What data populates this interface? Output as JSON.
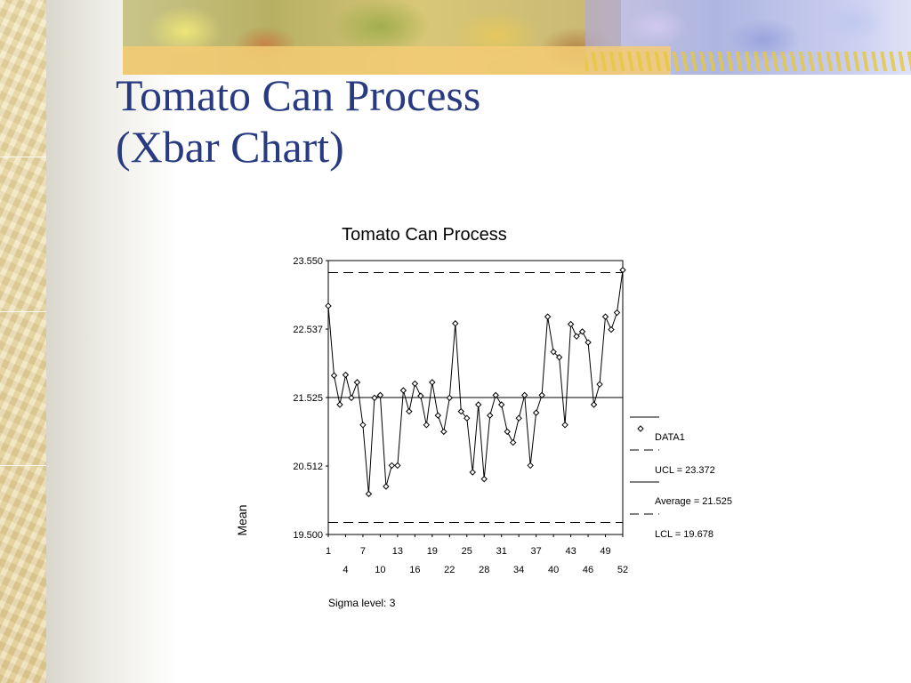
{
  "slide": {
    "title_line1": "Tomato Can Process",
    "title_line2": "(Xbar Chart)"
  },
  "chart_data": {
    "type": "line",
    "title": "Tomato Can Process",
    "xlabel": "",
    "ylabel": "Mean",
    "xlim": [
      1,
      52
    ],
    "ylim": [
      19.5,
      23.55
    ],
    "y_ticks": [
      "23.550",
      "22.537",
      "21.525",
      "20.512",
      "19.500"
    ],
    "x_ticks_row1": [
      1,
      7,
      13,
      19,
      25,
      31,
      37,
      43,
      49
    ],
    "x_ticks_row2": [
      4,
      10,
      16,
      22,
      28,
      34,
      40,
      46,
      52
    ],
    "series": [
      {
        "name": "DATA1",
        "x": [
          1,
          2,
          3,
          4,
          5,
          6,
          7,
          8,
          9,
          10,
          11,
          12,
          13,
          14,
          15,
          16,
          17,
          18,
          19,
          20,
          21,
          22,
          23,
          24,
          25,
          26,
          27,
          28,
          29,
          30,
          31,
          32,
          33,
          34,
          35,
          36,
          37,
          38,
          39,
          40,
          41,
          42,
          43,
          44,
          45,
          46,
          47,
          48,
          49,
          50,
          51,
          52
        ],
        "values": [
          22.88,
          21.85,
          21.42,
          21.86,
          21.52,
          21.75,
          21.12,
          20.1,
          21.52,
          21.56,
          20.21,
          20.52,
          20.52,
          21.63,
          21.32,
          21.73,
          21.55,
          21.12,
          21.75,
          21.26,
          21.02,
          21.52,
          22.62,
          21.32,
          21.22,
          20.42,
          21.42,
          20.32,
          21.26,
          21.56,
          21.42,
          21.02,
          20.86,
          21.22,
          21.56,
          20.52,
          21.3,
          21.56,
          22.72,
          22.2,
          22.12,
          21.12,
          22.61,
          22.43,
          22.5,
          22.34,
          21.42,
          21.72,
          22.72,
          22.53,
          22.78,
          23.41
        ]
      }
    ],
    "control_lines": {
      "ucl": 23.372,
      "average": 21.525,
      "lcl": 19.678
    },
    "legend": {
      "placement": "right",
      "entries": [
        "DATA1",
        "UCL = 23.372",
        "Average = 21.525",
        "LCL = 19.678"
      ]
    },
    "footnote": "Sigma level: 3",
    "grid": false,
    "colors": {
      "line": "#000000",
      "marker_fill": "#ffffff",
      "title": "#283a80"
    }
  }
}
